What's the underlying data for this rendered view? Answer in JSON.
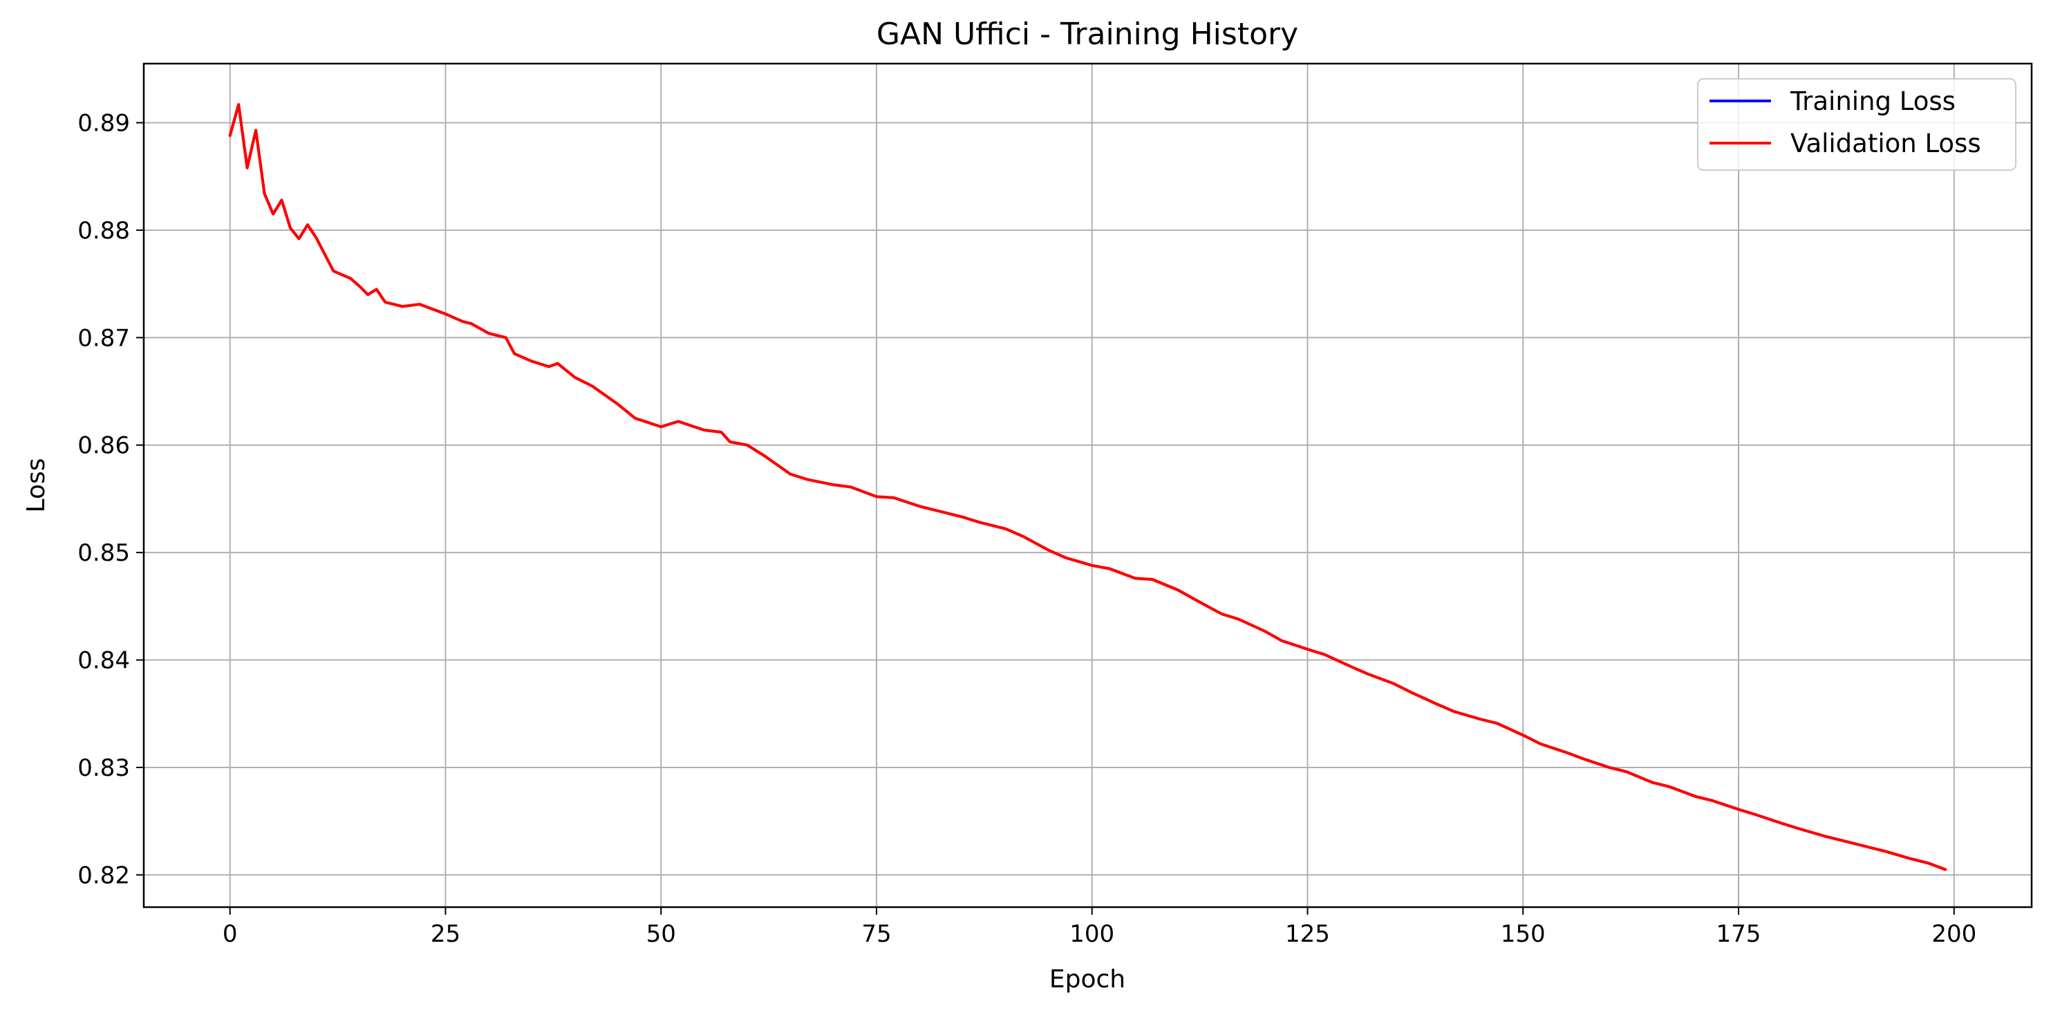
{
  "chart_data": {
    "type": "line",
    "title": "GAN Uffici - Training History",
    "xlabel": "Epoch",
    "ylabel": "Loss",
    "xlim": [
      -10,
      209
    ],
    "ylim": [
      0.817,
      0.8955
    ],
    "xticks": [
      0,
      25,
      50,
      75,
      100,
      125,
      150,
      175,
      200
    ],
    "yticks": [
      0.82,
      0.83,
      0.84,
      0.85,
      0.86,
      0.87,
      0.88,
      0.89
    ],
    "xtick_labels": [
      "0",
      "25",
      "50",
      "75",
      "100",
      "125",
      "150",
      "175",
      "200"
    ],
    "ytick_labels": [
      "0.82",
      "0.83",
      "0.84",
      "0.85",
      "0.86",
      "0.87",
      "0.88",
      "0.89"
    ],
    "grid": true,
    "legend_position": "top-right",
    "series": [
      {
        "name": "Training Loss",
        "color": "#0000ff",
        "visible_in_plot": false,
        "x": [],
        "y": []
      },
      {
        "name": "Validation Loss",
        "color": "#ff0000",
        "x": [
          0,
          1,
          2,
          3,
          4,
          5,
          6,
          7,
          8,
          9,
          10,
          12,
          14,
          15,
          16,
          17,
          18,
          20,
          22,
          25,
          27,
          28,
          30,
          32,
          33,
          35,
          37,
          38,
          40,
          42,
          45,
          47,
          50,
          52,
          55,
          57,
          58,
          60,
          62,
          65,
          67,
          70,
          72,
          75,
          77,
          80,
          82,
          85,
          87,
          90,
          92,
          95,
          97,
          100,
          102,
          105,
          107,
          110,
          112,
          115,
          117,
          120,
          122,
          125,
          127,
          130,
          132,
          135,
          137,
          140,
          142,
          145,
          147,
          150,
          152,
          155,
          157,
          160,
          162,
          165,
          167,
          170,
          172,
          175,
          177,
          180,
          182,
          185,
          187,
          190,
          192,
          195,
          197,
          199
        ],
        "y": [
          0.8888,
          0.8917,
          0.8858,
          0.8893,
          0.8834,
          0.8815,
          0.8828,
          0.8802,
          0.8792,
          0.8805,
          0.8793,
          0.8762,
          0.8755,
          0.8748,
          0.874,
          0.8745,
          0.8733,
          0.8729,
          0.8731,
          0.8722,
          0.8715,
          0.8713,
          0.8704,
          0.87,
          0.8685,
          0.8678,
          0.8673,
          0.8676,
          0.8663,
          0.8655,
          0.8638,
          0.8625,
          0.8617,
          0.8622,
          0.8614,
          0.8612,
          0.8603,
          0.86,
          0.859,
          0.8573,
          0.8568,
          0.8563,
          0.8561,
          0.8552,
          0.8551,
          0.8543,
          0.8539,
          0.8533,
          0.8528,
          0.8522,
          0.8515,
          0.8502,
          0.8495,
          0.8488,
          0.8485,
          0.8476,
          0.8475,
          0.8465,
          0.8456,
          0.8443,
          0.8438,
          0.8427,
          0.8418,
          0.841,
          0.8405,
          0.8394,
          0.8387,
          0.8378,
          0.837,
          0.8359,
          0.8352,
          0.8345,
          0.8341,
          0.833,
          0.8322,
          0.8314,
          0.8308,
          0.83,
          0.8296,
          0.8286,
          0.8282,
          0.8273,
          0.8269,
          0.8261,
          0.8256,
          0.8248,
          0.8243,
          0.8236,
          0.8232,
          0.8226,
          0.8222,
          0.8215,
          0.8211,
          0.8205
        ]
      }
    ]
  }
}
